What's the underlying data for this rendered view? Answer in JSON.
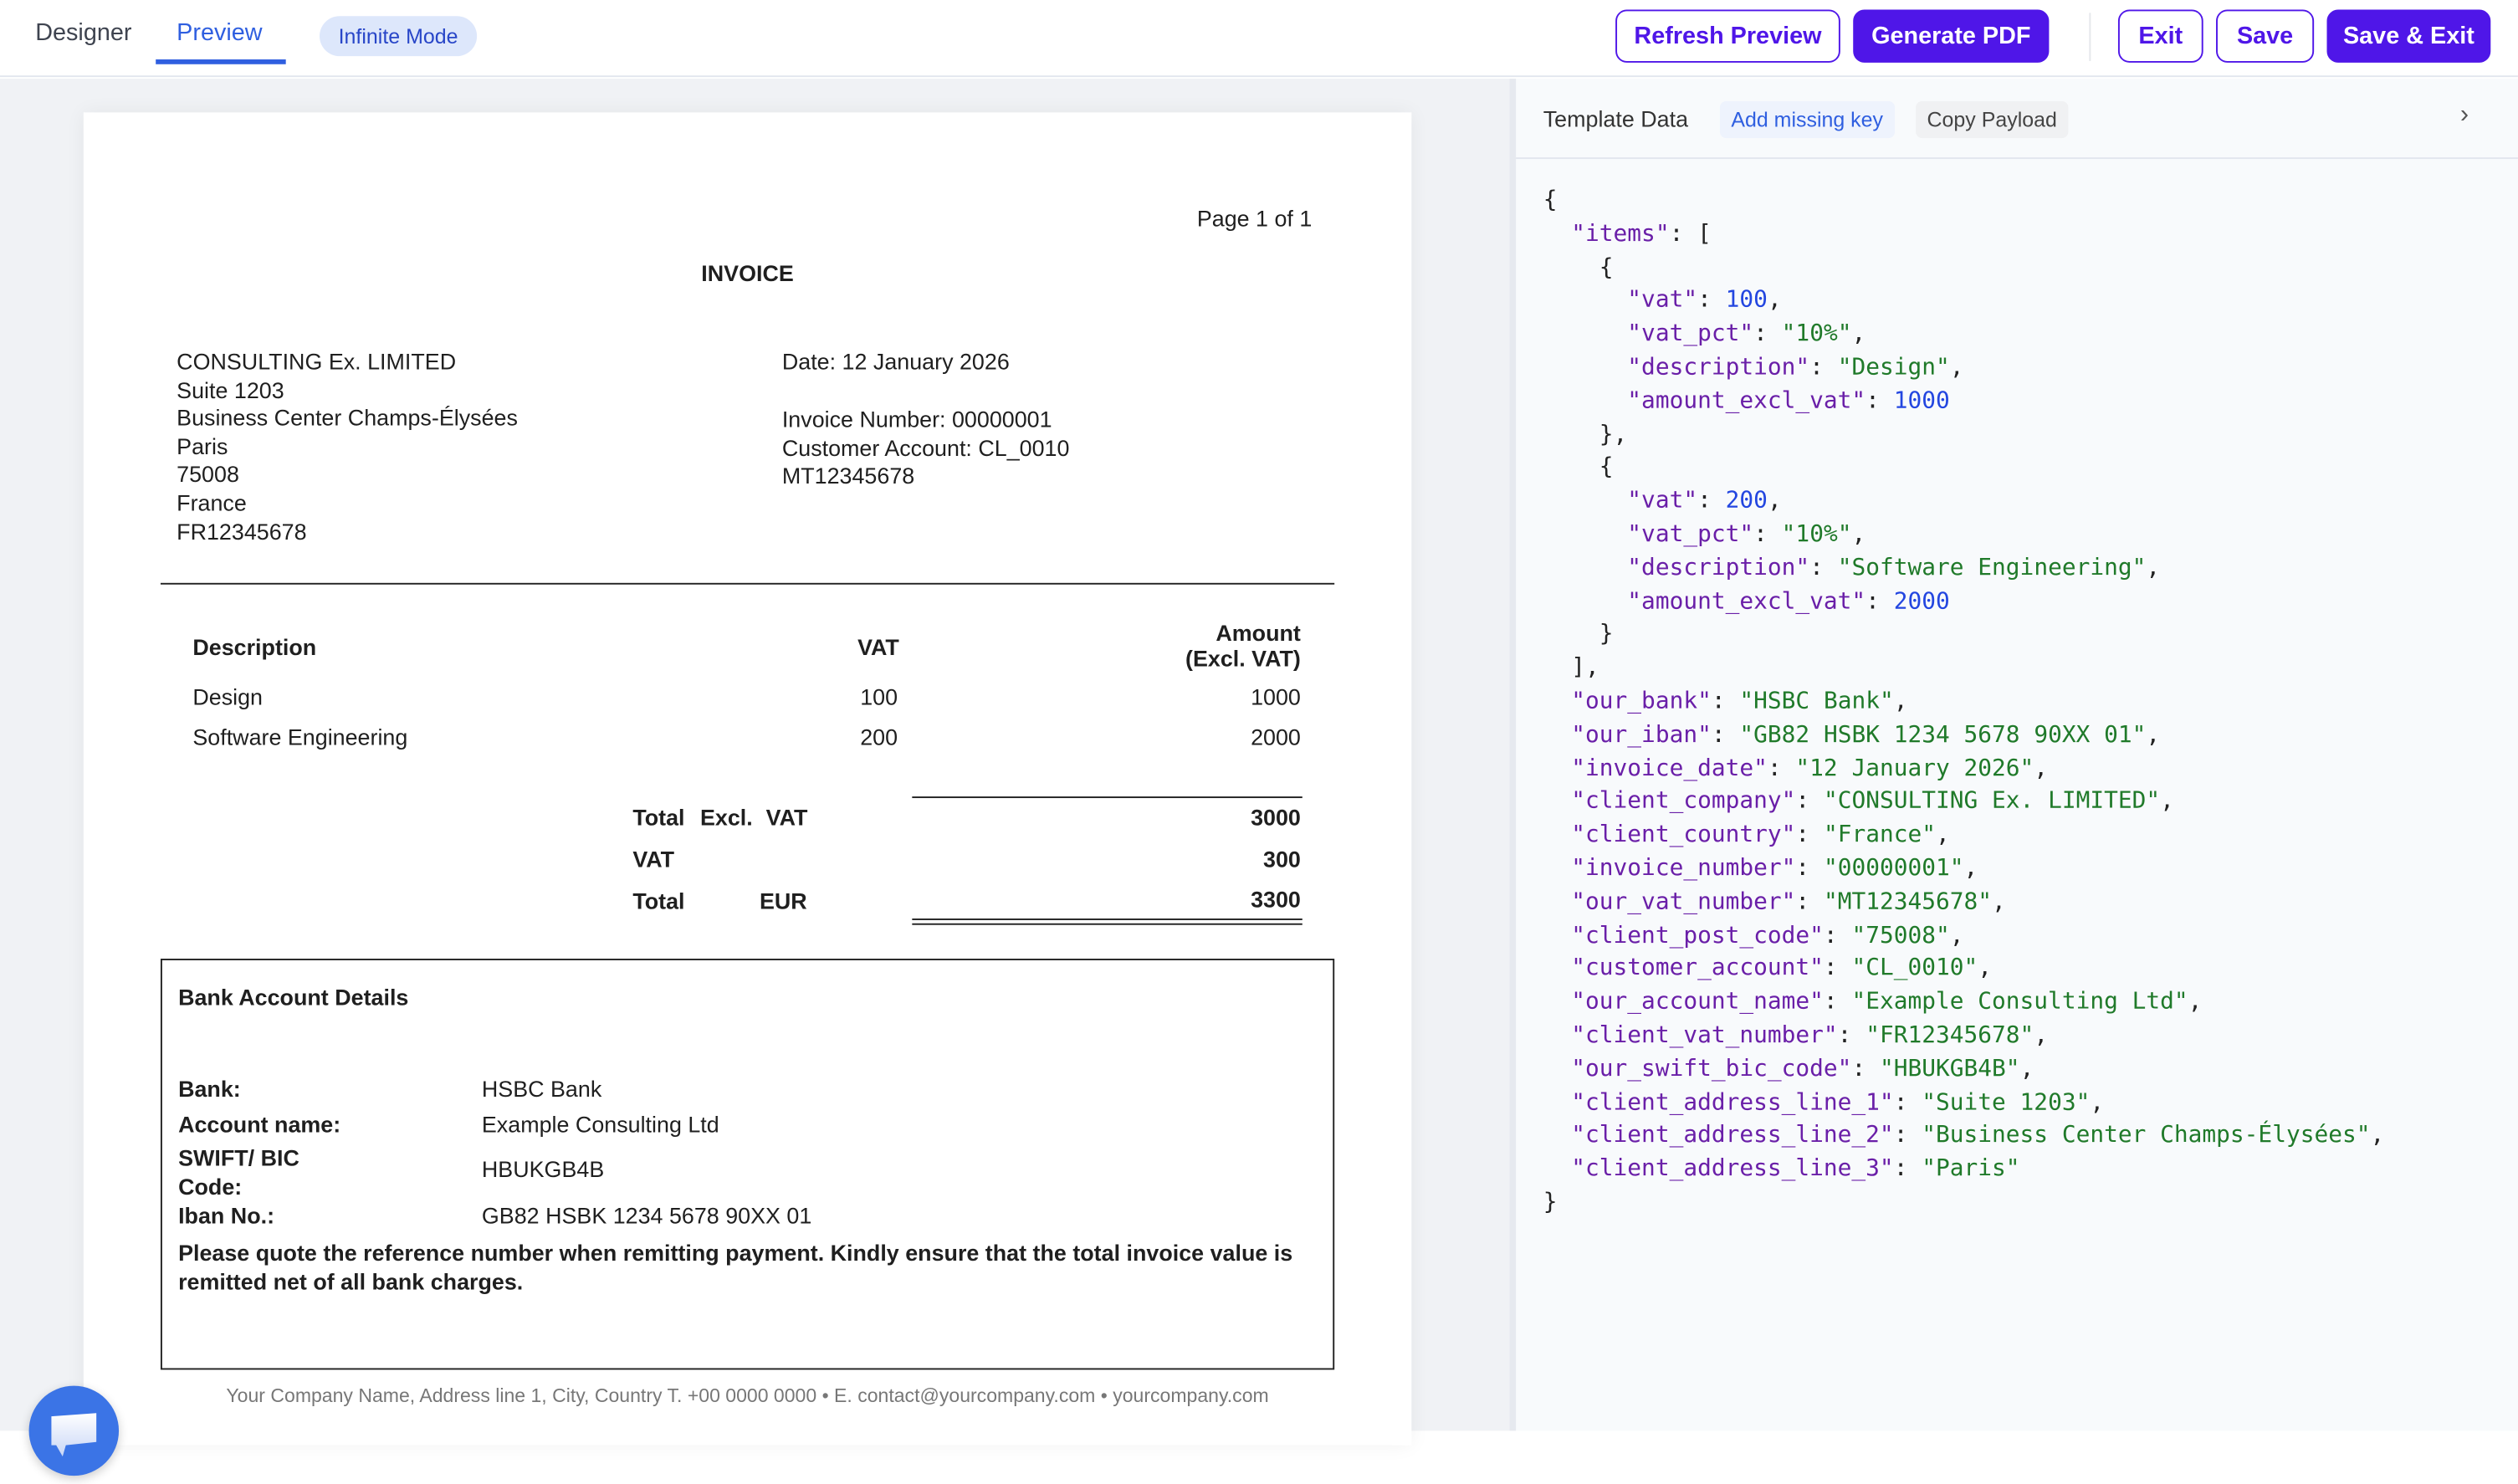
{
  "topbar": {
    "tabs": [
      {
        "label": "Designer",
        "active": false
      },
      {
        "label": "Preview",
        "active": true
      }
    ],
    "mode_badge": "Infinite Mode",
    "buttons": {
      "refresh": "Refresh Preview",
      "generate": "Generate PDF",
      "exit": "Exit",
      "save": "Save",
      "save_exit": "Save & Exit"
    },
    "accent": "#4f16e8"
  },
  "invoice": {
    "page_indicator": "Page 1 of 1",
    "title": "INVOICE",
    "client_lines": [
      "CONSULTING Ex. LIMITED",
      "Suite 1203",
      "Business Center Champs-Élysées",
      "Paris",
      "75008",
      "France",
      "FR12345678"
    ],
    "date_line": "Date: 12 January 2026",
    "meta_lines": [
      "Invoice Number: 00000001",
      "Customer Account: CL_0010",
      "MT12345678"
    ],
    "table": {
      "headers": {
        "description": "Description",
        "vat": "VAT",
        "amount_1": "Amount",
        "amount_2": "(Excl. VAT)"
      },
      "rows": [
        {
          "description": "Design",
          "vat": "100",
          "amount": "1000"
        },
        {
          "description": "Software Engineering",
          "vat": "200",
          "amount": "2000"
        }
      ]
    },
    "totals": {
      "excl_label_1": "Total",
      "excl_label_2": "Excl.",
      "excl_label_3": "VAT",
      "excl_value": "3000",
      "vat_label": "VAT",
      "vat_value": "300",
      "total_label": "Total",
      "currency": "EUR",
      "total_value": "3300"
    },
    "bank": {
      "heading": "Bank Account Details",
      "bank_label": "Bank:",
      "bank_value": "HSBC Bank",
      "account_label": "Account name:",
      "account_value": "Example Consulting Ltd",
      "swift_label_1": "SWIFT/ BIC",
      "swift_label_2": "Code:",
      "swift_value": "HBUKGB4B",
      "iban_label": "Iban No.:",
      "iban_value": "GB82 HSBK 1234 5678 90XX 01",
      "note_1": "Please quote the reference number when remitting payment. Kindly ensure that the total invoice value is",
      "note_2": "remitted net of all bank charges."
    },
    "footer": "Your Company Name, Address line 1, City, Country T. +00 0000 0000 • E. contact@yourcompany.com • yourcompany.com"
  },
  "panel": {
    "title": "Template Data",
    "add_missing_key": "Add missing key",
    "copy_payload": "Copy Payload",
    "code_lines": [
      {
        "i": 0,
        "p": "{"
      },
      {
        "i": 1,
        "k": "\"items\"",
        "p": ": ["
      },
      {
        "i": 2,
        "p": "{"
      },
      {
        "i": 3,
        "k": "\"vat\"",
        "v": "100",
        "t": "n",
        "p": ","
      },
      {
        "i": 3,
        "k": "\"vat_pct\"",
        "v": "\"10%\"",
        "t": "s",
        "p": ","
      },
      {
        "i": 3,
        "k": "\"description\"",
        "v": "\"Design\"",
        "t": "s",
        "p": ","
      },
      {
        "i": 3,
        "k": "\"amount_excl_vat\"",
        "v": "1000",
        "t": "n",
        "p": ""
      },
      {
        "i": 2,
        "p": "},"
      },
      {
        "i": 2,
        "p": "{"
      },
      {
        "i": 3,
        "k": "\"vat\"",
        "v": "200",
        "t": "n",
        "p": ","
      },
      {
        "i": 3,
        "k": "\"vat_pct\"",
        "v": "\"10%\"",
        "t": "s",
        "p": ","
      },
      {
        "i": 3,
        "k": "\"description\"",
        "v": "\"Software Engineering\"",
        "t": "s",
        "p": ","
      },
      {
        "i": 3,
        "k": "\"amount_excl_vat\"",
        "v": "2000",
        "t": "n",
        "p": ""
      },
      {
        "i": 2,
        "p": "}"
      },
      {
        "i": 1,
        "p": "],"
      },
      {
        "i": 1,
        "k": "\"our_bank\"",
        "v": "\"HSBC Bank\"",
        "t": "s",
        "p": ","
      },
      {
        "i": 1,
        "k": "\"our_iban\"",
        "v": "\"GB82 HSBK 1234 5678 90XX 01\"",
        "t": "s",
        "p": ","
      },
      {
        "i": 1,
        "k": "\"invoice_date\"",
        "v": "\"12 January 2026\"",
        "t": "s",
        "p": ","
      },
      {
        "i": 1,
        "k": "\"client_company\"",
        "v": "\"CONSULTING Ex. LIMITED\"",
        "t": "s",
        "p": ","
      },
      {
        "i": 1,
        "k": "\"client_country\"",
        "v": "\"France\"",
        "t": "s",
        "p": ","
      },
      {
        "i": 1,
        "k": "\"invoice_number\"",
        "v": "\"00000001\"",
        "t": "s",
        "p": ","
      },
      {
        "i": 1,
        "k": "\"our_vat_number\"",
        "v": "\"MT12345678\"",
        "t": "s",
        "p": ","
      },
      {
        "i": 1,
        "k": "\"client_post_code\"",
        "v": "\"75008\"",
        "t": "s",
        "p": ","
      },
      {
        "i": 1,
        "k": "\"customer_account\"",
        "v": "\"CL_0010\"",
        "t": "s",
        "p": ","
      },
      {
        "i": 1,
        "k": "\"our_account_name\"",
        "v": "\"Example Consulting Ltd\"",
        "t": "s",
        "p": ","
      },
      {
        "i": 1,
        "k": "\"client_vat_number\"",
        "v": "\"FR12345678\"",
        "t": "s",
        "p": ","
      },
      {
        "i": 1,
        "k": "\"our_swift_bic_code\"",
        "v": "\"HBUKGB4B\"",
        "t": "s",
        "p": ","
      },
      {
        "i": 1,
        "k": "\"client_address_line_1\"",
        "v": "\"Suite 1203\"",
        "t": "s",
        "p": ","
      },
      {
        "i": 1,
        "k": "\"client_address_line_2\"",
        "v": "\"Business Center Champs-Élysées\"",
        "t": "s",
        "p": ","
      },
      {
        "i": 1,
        "k": "\"client_address_line_3\"",
        "v": "\"Paris\"",
        "t": "s",
        "p": ""
      },
      {
        "i": 0,
        "p": "}"
      }
    ]
  }
}
